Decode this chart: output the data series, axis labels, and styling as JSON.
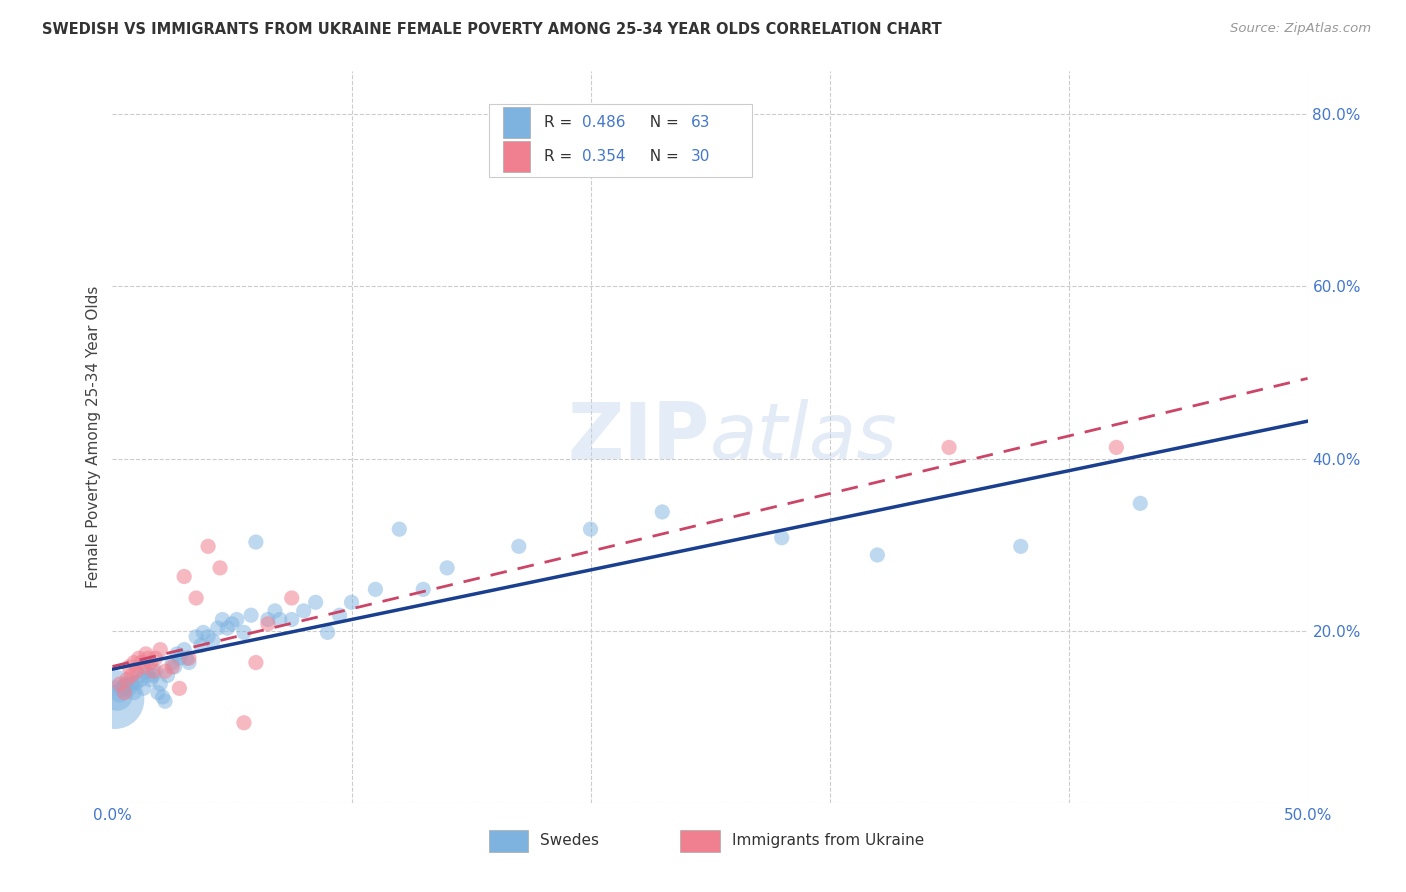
{
  "title": "SWEDISH VS IMMIGRANTS FROM UKRAINE FEMALE POVERTY AMONG 25-34 YEAR OLDS CORRELATION CHART",
  "source": "Source: ZipAtlas.com",
  "ylabel": "Female Poverty Among 25-34 Year Olds",
  "xlim": [
    0.0,
    0.5
  ],
  "ylim": [
    0.0,
    0.85
  ],
  "xticks": [
    0.0,
    0.1,
    0.2,
    0.3,
    0.4,
    0.5
  ],
  "xtick_labels": [
    "0.0%",
    "",
    "",
    "",
    "",
    "50.0%"
  ],
  "yticks_right": [
    0.0,
    0.2,
    0.4,
    0.6,
    0.8
  ],
  "ytick_labels_right": [
    "",
    "20.0%",
    "40.0%",
    "60.0%",
    "80.0%"
  ],
  "swedes_color": "#7eb3e0",
  "ukraine_color": "#f08090",
  "swedes_line_color": "#1a3f8f",
  "ukraine_line_color": "#cc4466",
  "background_color": "#ffffff",
  "grid_color": "#cccccc",
  "R_swedes": 0.486,
  "N_swedes": 63,
  "R_ukraine": 0.354,
  "N_ukraine": 30,
  "swedes_x": [
    0.001,
    0.002,
    0.003,
    0.004,
    0.005,
    0.006,
    0.007,
    0.008,
    0.009,
    0.01,
    0.011,
    0.012,
    0.013,
    0.014,
    0.015,
    0.016,
    0.017,
    0.018,
    0.019,
    0.02,
    0.021,
    0.022,
    0.023,
    0.025,
    0.026,
    0.027,
    0.028,
    0.03,
    0.031,
    0.032,
    0.035,
    0.037,
    0.038,
    0.04,
    0.042,
    0.044,
    0.046,
    0.048,
    0.05,
    0.052,
    0.055,
    0.058,
    0.06,
    0.065,
    0.068,
    0.07,
    0.075,
    0.08,
    0.085,
    0.09,
    0.095,
    0.1,
    0.11,
    0.12,
    0.13,
    0.14,
    0.17,
    0.2,
    0.23,
    0.28,
    0.32,
    0.38,
    0.43
  ],
  "swedes_y": [
    0.12,
    0.125,
    0.128,
    0.132,
    0.135,
    0.138,
    0.133,
    0.138,
    0.128,
    0.14,
    0.148,
    0.143,
    0.133,
    0.152,
    0.148,
    0.143,
    0.148,
    0.153,
    0.128,
    0.138,
    0.123,
    0.118,
    0.148,
    0.163,
    0.158,
    0.173,
    0.168,
    0.178,
    0.168,
    0.163,
    0.193,
    0.183,
    0.198,
    0.193,
    0.188,
    0.203,
    0.213,
    0.203,
    0.208,
    0.213,
    0.198,
    0.218,
    0.303,
    0.213,
    0.223,
    0.213,
    0.213,
    0.223,
    0.233,
    0.198,
    0.218,
    0.233,
    0.248,
    0.318,
    0.248,
    0.273,
    0.298,
    0.318,
    0.338,
    0.308,
    0.288,
    0.298,
    0.348
  ],
  "swedes_size": [
    1800,
    500,
    200,
    150,
    150,
    130,
    130,
    120,
    120,
    120,
    120,
    120,
    120,
    120,
    120,
    120,
    120,
    120,
    120,
    120,
    120,
    120,
    120,
    120,
    120,
    120,
    120,
    120,
    120,
    120,
    120,
    120,
    120,
    120,
    120,
    120,
    120,
    120,
    120,
    120,
    120,
    120,
    120,
    120,
    120,
    120,
    120,
    120,
    120,
    120,
    120,
    120,
    120,
    120,
    120,
    120,
    120,
    120,
    120,
    120,
    120,
    120,
    120
  ],
  "ukraine_x": [
    0.003,
    0.005,
    0.006,
    0.007,
    0.008,
    0.009,
    0.01,
    0.011,
    0.012,
    0.013,
    0.014,
    0.015,
    0.016,
    0.017,
    0.018,
    0.02,
    0.022,
    0.025,
    0.028,
    0.03,
    0.032,
    0.035,
    0.04,
    0.045,
    0.055,
    0.06,
    0.065,
    0.075,
    0.35,
    0.42
  ],
  "ukraine_y": [
    0.138,
    0.128,
    0.143,
    0.158,
    0.148,
    0.163,
    0.153,
    0.168,
    0.163,
    0.158,
    0.173,
    0.168,
    0.163,
    0.153,
    0.168,
    0.178,
    0.153,
    0.158,
    0.133,
    0.263,
    0.168,
    0.238,
    0.298,
    0.273,
    0.093,
    0.163,
    0.208,
    0.238,
    0.413,
    0.413
  ],
  "ukraine_size": [
    120,
    120,
    120,
    120,
    120,
    120,
    120,
    120,
    120,
    120,
    120,
    120,
    120,
    120,
    120,
    120,
    120,
    120,
    120,
    120,
    120,
    120,
    120,
    120,
    120,
    120,
    120,
    120,
    120,
    120
  ]
}
